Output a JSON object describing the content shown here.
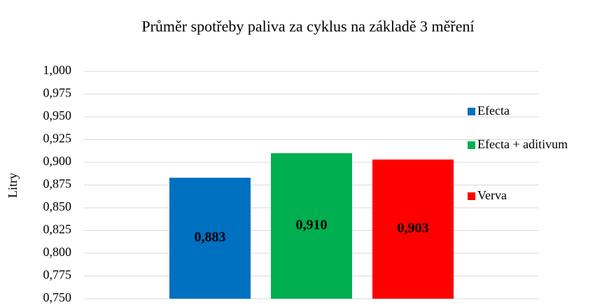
{
  "chart_data": {
    "type": "bar",
    "title": "Průměr spotřeby paliva za cyklus na základě 3 měření",
    "y_label": "Litry",
    "categories": [
      null
    ],
    "series": [
      {
        "name": "Efecta",
        "color": "#0070c0",
        "values": [
          0.883
        ],
        "value_labels": [
          "0,883"
        ]
      },
      {
        "name": "Efecta + aditivum",
        "color": "#00b050",
        "values": [
          0.91
        ],
        "value_labels": [
          "0,910"
        ]
      },
      {
        "name": "Verva",
        "color": "#ff0000",
        "values": [
          0.903
        ],
        "value_labels": [
          "0,903"
        ]
      }
    ],
    "ylim": [
      0.75,
      1.0
    ],
    "yticks": [
      {
        "value": 0.75,
        "label": "0,750"
      },
      {
        "value": 0.775,
        "label": "0,775"
      },
      {
        "value": 0.8,
        "label": "0,800"
      },
      {
        "value": 0.825,
        "label": "0,825"
      },
      {
        "value": 0.85,
        "label": "0,850"
      },
      {
        "value": 0.875,
        "label": "0,875"
      },
      {
        "value": 0.9,
        "label": "0,900"
      },
      {
        "value": 0.925,
        "label": "0,925"
      },
      {
        "value": 0.95,
        "label": "0,950"
      },
      {
        "value": 0.975,
        "label": "0,975"
      },
      {
        "value": 1.0,
        "label": "1,000"
      }
    ],
    "grid": true,
    "legend": "right"
  }
}
